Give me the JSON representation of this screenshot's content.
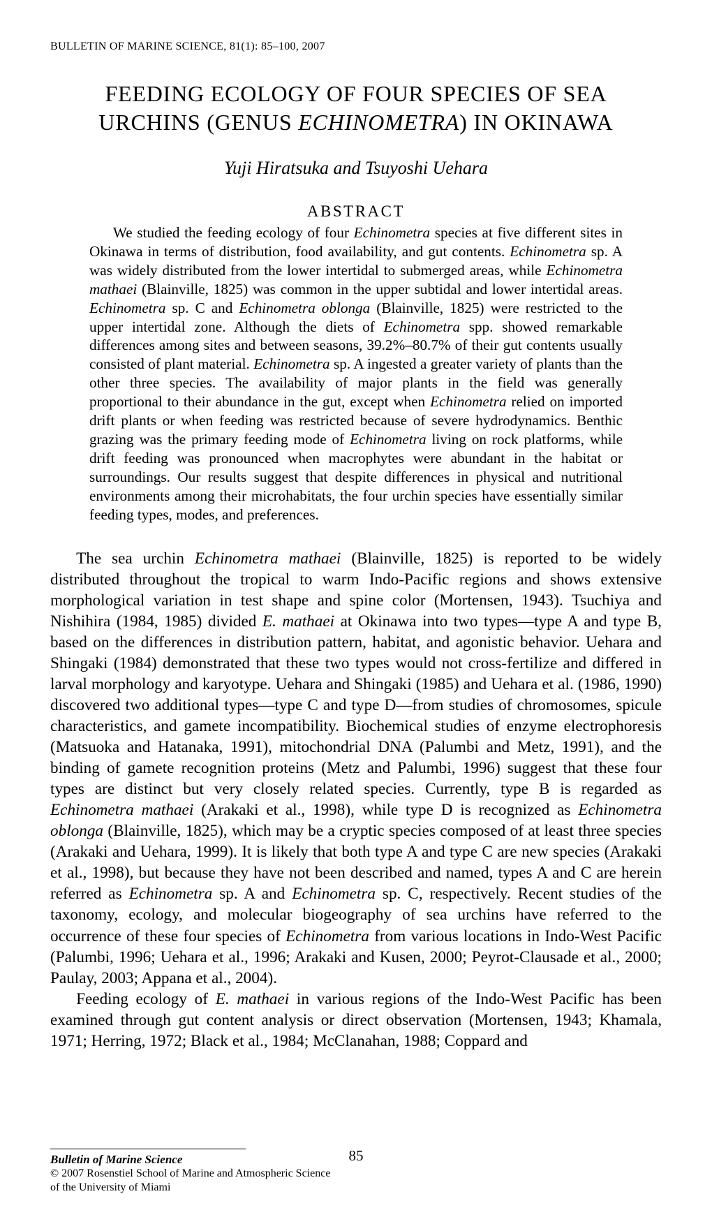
{
  "running_head": "BULLETIN OF MARINE SCIENCE, 81(1): 85–100, 2007",
  "title_line1": "FEEDING ECOLOGY OF FOUR SPECIES OF SEA",
  "title_line2_pre": "URCHINS (GENUS ",
  "title_line2_genus": "ECHINOMETRA",
  "title_line2_post": ") IN OKINAWA",
  "authors": "Yuji Hiratsuka and Tsuyoshi Uehara",
  "abstract_heading": "ABSTRACT",
  "abstract_html": "We studied the feeding ecology of four <i>Echinometra</i> species at five different sites in Okinawa in terms of distribution, food availability, and gut contents. <i>Echinometra</i> sp. A was widely distributed from the lower intertidal to submerged areas, while <i>Echinometra mathaei</i> (Blainville, 1825) was common in the upper subtidal and lower intertidal areas. <i>Echinometra</i> sp. C and <i>Echinometra oblonga</i> (Blainville, 1825) were restricted to the upper intertidal zone. Although the diets of <i>Echinometra</i> spp. showed remarkable differences among sites and between seasons, 39.2%–80.7% of their gut contents usually consisted of plant material. <i>Echinometra</i> sp. A ingested a greater variety of plants than the other three species. The availability of major plants in the field was generally proportional to their abundance in the gut, except when <i>Echinometra</i> relied on imported drift plants or when feeding was restricted because of severe hydrodynamics. Benthic grazing was the primary feeding mode of <i>Echinometra</i> living on rock platforms, while drift feeding was pronounced when macrophytes were abundant in the habitat or surroundings. Our results suggest that despite differences in physical and nutritional environments among their microhabitats, the four urchin species have essentially similar feeding types, modes, and preferences.",
  "body_p1_html": "The sea urchin <i>Echinometra mathaei</i> (Blainville, 1825) is reported to be widely distributed throughout the tropical to warm Indo-Pacific regions and shows extensive morphological variation in test shape and spine color (Mortensen, 1943). Tsuchiya and Nishihira (1984, 1985) divided <i>E. mathaei</i> at Okinawa into two types—type A and type B, based on the differences in distribution pattern, habitat, and agonistic behavior. Uehara and Shingaki (1984) demonstrated that these two types would not cross-fertilize and differed in larval morphology and karyotype. Uehara and Shingaki (1985) and Uehara et al. (1986, 1990) discovered two additional types—type C and type D—from studies of chromosomes, spicule characteristics, and gamete incompatibility. Biochemical studies of enzyme electrophoresis (Matsuoka and Hatanaka, 1991), mitochondrial DNA (Palumbi and Metz, 1991), and the binding of gamete recognition proteins (Metz and Palumbi, 1996) suggest that these four types are distinct but very closely related species. Currently, type B is regarded as <i>Echinometra mathaei</i> (Arakaki et al., 1998), while type D is recognized as <i>Echinometra oblonga</i> (Blainville, 1825), which may be a cryptic species composed of at least three species (Arakaki and Uehara, 1999). It is likely that both type A and type C are new species (Arakaki et al., 1998), but because they have not been described and named, types A and C are herein referred as <i>Echinometra</i> sp. A and <i>Echinometra</i> sp. C, respectively. Recent studies of the taxonomy, ecology, and molecular biogeography of sea urchins have referred to the occurrence of these four species of <i>Echinometra</i> from various locations in Indo-West Pacific (Palumbi, 1996; Uehara et al., 1996; Arakaki and Kusen, 2000; Peyrot-Clausade et al., 2000; Paulay, 2003; Appana et al., 2004).",
  "body_p2_html": "Feeding ecology of <i>E. mathaei</i> in various regions of the Indo-West Pacific has been examined through gut content analysis or direct observation (Mortensen, 1943; Khamala, 1971; Herring, 1972; Black et al., 1984; McClanahan, 1988; Coppard and",
  "footer_journal": "Bulletin of Marine Science",
  "footer_copyright1": "© 2007 Rosenstiel School of Marine and Atmospheric Science",
  "footer_copyright2": "of the University of Miami",
  "page_number": "85"
}
